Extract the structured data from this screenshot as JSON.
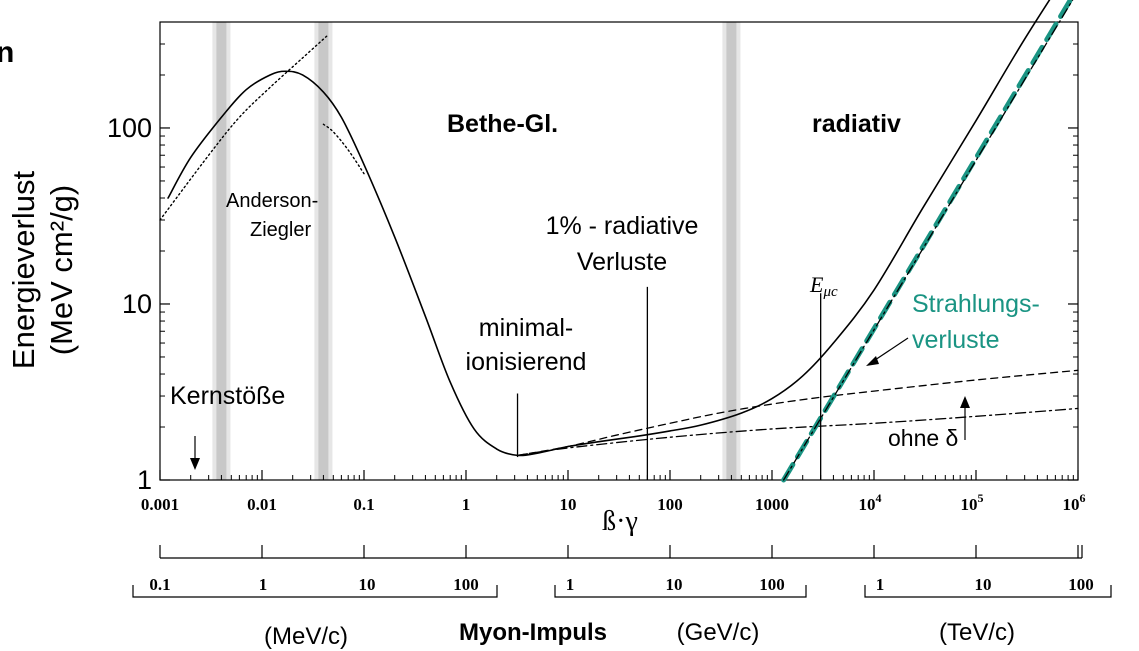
{
  "chart_data": {
    "type": "line",
    "ylabel_line1": "Energieverlust",
    "ylabel_line2": "(MeV cm²/g)",
    "xlabel": "ß·γ",
    "x_scale": "log",
    "y_scale": "log",
    "xlim": [
      0.001,
      1000000
    ],
    "ylim": [
      1,
      400
    ],
    "x_ticks": [
      {
        "value": 0.001,
        "label": "0.001"
      },
      {
        "value": 0.01,
        "label": "0.01"
      },
      {
        "value": 0.1,
        "label": "0.1"
      },
      {
        "value": 1,
        "label": "1"
      },
      {
        "value": 10,
        "label": "10"
      },
      {
        "value": 100,
        "label": "100"
      },
      {
        "value": 1000,
        "label": "1000"
      },
      {
        "value": 10000,
        "label": "10",
        "sup": "4"
      },
      {
        "value": 100000,
        "label": "10",
        "sup": "5"
      },
      {
        "value": 1000000,
        "label": "10",
        "sup": "6"
      }
    ],
    "y_ticks": [
      {
        "value": 1,
        "label": "1"
      },
      {
        "value": 10,
        "label": "10"
      },
      {
        "value": 100,
        "label": "100"
      }
    ],
    "series": [
      {
        "key": "total",
        "style": "solid",
        "color": "#000000",
        "x": [
          0.0012,
          0.002,
          0.004,
          0.007,
          0.012,
          0.017,
          0.025,
          0.04,
          0.06,
          0.1,
          0.2,
          0.4,
          0.7,
          1.2,
          2,
          3.2,
          5,
          10,
          20,
          50,
          100,
          200,
          500,
          1000,
          2000,
          4000,
          10000,
          30000,
          100000,
          300000,
          1000000
        ],
        "y": [
          40,
          68,
          115,
          165,
          200,
          210,
          200,
          160,
          115,
          62,
          24,
          8.5,
          3.6,
          1.95,
          1.5,
          1.38,
          1.42,
          1.55,
          1.65,
          1.78,
          1.9,
          2.05,
          2.4,
          2.9,
          3.9,
          6,
          12,
          35,
          110,
          320,
          950
        ]
      },
      {
        "key": "low-energy-fit",
        "style": "dotted",
        "color": "#000000",
        "x": [
          0.001,
          0.003,
          0.006,
          0.012,
          0.025,
          0.045
        ],
        "y": [
          30,
          70,
          115,
          170,
          250,
          340
        ]
      },
      {
        "key": "anderson-ziegler",
        "style": "dotted",
        "color": "#000000",
        "x": [
          0.04,
          0.05,
          0.07,
          0.1
        ],
        "y": [
          105,
          95,
          75,
          55
        ]
      },
      {
        "key": "with-delta",
        "style": "dashed",
        "color": "#000000",
        "x": [
          3.2,
          10,
          30,
          100,
          300,
          1000,
          3000,
          10000,
          100000,
          1000000
        ],
        "y": [
          1.38,
          1.55,
          1.8,
          2.1,
          2.4,
          2.7,
          2.95,
          3.2,
          3.7,
          4.2
        ]
      },
      {
        "key": "ohne-delta",
        "style": "dashdot",
        "color": "#000000",
        "x": [
          3.2,
          10,
          100,
          1000,
          10000,
          100000,
          1000000
        ],
        "y": [
          1.38,
          1.52,
          1.75,
          1.95,
          2.1,
          2.3,
          2.55
        ]
      },
      {
        "key": "strahlungsverluste",
        "style": "dashed-thick",
        "color": "#1a9483",
        "x": [
          1300,
          1000000
        ],
        "y": [
          1,
          630
        ]
      },
      {
        "key": "radiative-thin",
        "style": "dashdot",
        "color": "#000000",
        "x": [
          1300,
          1000000
        ],
        "y": [
          1,
          600
        ]
      }
    ],
    "markers": [
      {
        "key": "minimal",
        "x": 3.2,
        "y_from": 1.35,
        "y_to": 3.1
      },
      {
        "key": "one-percent",
        "x": 60,
        "y_from": 1,
        "y_to": 12.5
      },
      {
        "key": "emuc",
        "x": 3000,
        "y_from": 1,
        "y_to": 11.5
      }
    ],
    "bands": [
      0.004,
      0.04,
      400
    ],
    "annotations": {
      "bethe": "Bethe-Gl.",
      "radiativ": "radiativ",
      "anderson_line1": "Anderson-",
      "anderson_line2": "Ziegler",
      "radiative_line1": "1% - radiative",
      "radiative_line2": "Verluste",
      "minimal_line1": "minimal-",
      "minimal_line2": "ionisierend",
      "emuc": "E",
      "emuc_sub": "μc",
      "strahlung_line1": "Strahlungs-",
      "strahlung_line2": "verluste",
      "kern": "Kernstöße",
      "ohne": "ohne δ",
      "edge_letter": "n"
    },
    "momentum_scales": {
      "title": "Myon-Impuls",
      "mev": {
        "unit": "(MeV/c)",
        "ticks": [
          "0.1",
          "1",
          "10",
          "100"
        ]
      },
      "gev": {
        "unit": "(GeV/c)",
        "ticks": [
          "1",
          "10",
          "100"
        ]
      },
      "tev": {
        "unit": "(TeV/c)",
        "ticks": [
          "1",
          "10",
          "100"
        ]
      }
    },
    "colors": {
      "accent": "#1a9483",
      "ink": "#000000",
      "band": "#c8c8c8"
    }
  }
}
